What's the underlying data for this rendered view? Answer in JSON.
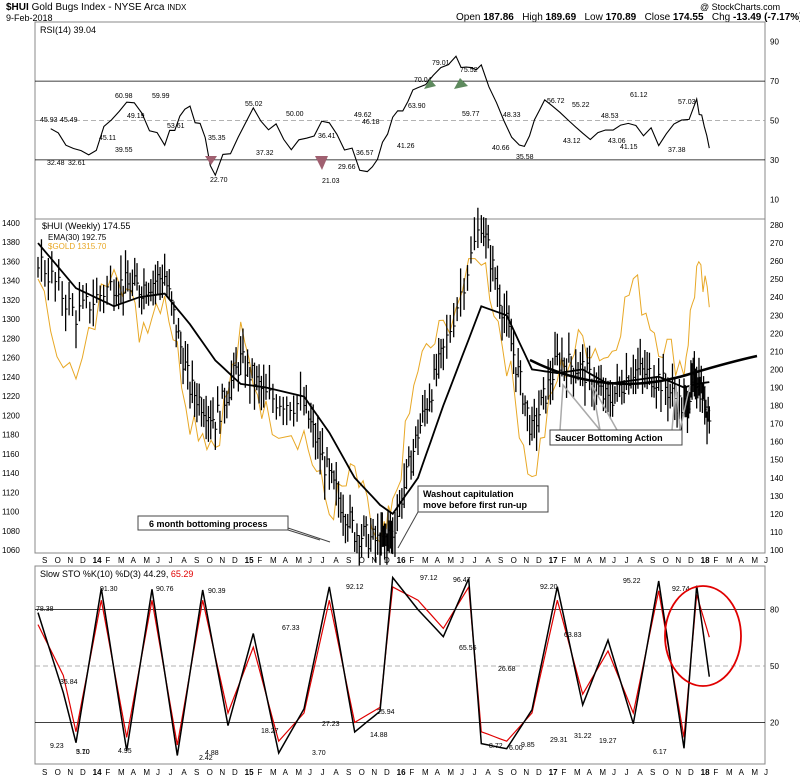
{
  "header": {
    "symbol": "$HUI",
    "name": "Gold Bugs Index - NYSE Arca",
    "exchange": "INDX",
    "date": "9-Feb-2018",
    "ohlc": {
      "open_label": "Open",
      "open": "187.86",
      "high_label": "High",
      "high": "189.69",
      "low_label": "Low",
      "low": "170.89",
      "close_label": "Close",
      "close": "174.55",
      "chg_label": "Chg",
      "chg": "-13.49 (-7.17%)"
    },
    "credit": "@ StockCharts.com"
  },
  "colors": {
    "hui": "#000000",
    "gold": "#e8a826",
    "rsi_over": "#5e8a5e",
    "rsi_under": "#a06070",
    "stoch_d": "#e00000",
    "circle": "#e00000",
    "grid": "#dddddd"
  },
  "rsi": {
    "legend": "RSI(14) 39.04",
    "ticks": [
      "90",
      "70",
      "50",
      "30",
      "10"
    ],
    "labels": [
      "45.93",
      "45.49",
      "32.48",
      "32.61",
      "60.98",
      "45.11",
      "49.19",
      "39.55",
      "59.99",
      "53.61",
      "35.35",
      "22.70",
      "55.02",
      "37.32",
      "50.00",
      "36.41",
      "21.03",
      "29.66",
      "49.62",
      "46.18",
      "36.57",
      "70.04",
      "79.01",
      "63.90",
      "41.26",
      "75.52",
      "59.77",
      "48.33",
      "40.66",
      "35.58",
      "56.72",
      "43.12",
      "55.22",
      "43.06",
      "48.53",
      "41.15",
      "61.12",
      "57.03",
      "37.38"
    ]
  },
  "main": {
    "legend_hui": "$HUI (Weekly) 174.55",
    "legend_ema": "EMA(30) 192.75",
    "legend_gold": "$GOLD 1315.70",
    "left_ticks": [
      "1400",
      "1380",
      "1360",
      "1340",
      "1320",
      "1300",
      "1280",
      "1260",
      "1240",
      "1220",
      "1200",
      "1180",
      "1160",
      "1140",
      "1120",
      "1100",
      "1080",
      "1060"
    ],
    "right_ticks": [
      "280",
      "270",
      "260",
      "250",
      "240",
      "230",
      "220",
      "210",
      "200",
      "190",
      "180",
      "170",
      "160",
      "150",
      "140",
      "130",
      "120",
      "110",
      "100"
    ],
    "annotations": {
      "bottoming": "6 month bottoming process",
      "washout_l1": "Washout capitulation",
      "washout_l2": "move before first run-up",
      "saucer": "Saucer Bottoming Action"
    }
  },
  "stoch": {
    "legend_prefix": "Slow STO %K(10) %D(3) 44.29,",
    "legend_d": "65.29",
    "ticks": [
      "80",
      "50",
      "20"
    ],
    "labels": [
      "78.38",
      "35.84",
      "9.23",
      "5.10",
      "3.70",
      "91.30",
      "90.76",
      "4.95",
      "2.42",
      "4.88",
      "90.39",
      "67.33",
      "18.27",
      "3.70",
      "27.23",
      "92.12",
      "14.88",
      "25.94",
      "97.12",
      "96.47",
      "65.55",
      "8.72",
      "6.00",
      "9.85",
      "26.68",
      "92.20",
      "63.83",
      "29.31",
      "31.22",
      "19.27",
      "95.22",
      "6.17",
      "92.74"
    ]
  },
  "xaxis": {
    "labels": [
      "S",
      "O",
      "N",
      "D",
      "14",
      "F",
      "M",
      "A",
      "M",
      "J",
      "J",
      "A",
      "S",
      "O",
      "N",
      "D",
      "15",
      "F",
      "M",
      "A",
      "M",
      "J",
      "J",
      "A",
      "S",
      "O",
      "N",
      "D",
      "16",
      "F",
      "M",
      "A",
      "M",
      "J",
      "J",
      "A",
      "S",
      "O",
      "N",
      "D",
      "17",
      "F",
      "M",
      "A",
      "M",
      "J",
      "J",
      "A",
      "S",
      "O",
      "N",
      "D",
      "18",
      "F",
      "M",
      "A",
      "M",
      "J"
    ]
  },
  "chart_data": [
    {
      "type": "line",
      "title": "RSI(14) 39.04",
      "ylim": [
        0,
        100
      ],
      "reference_lines": [
        70,
        50,
        30
      ],
      "x": [
        "2013-10",
        "2014-01",
        "2014-04",
        "2014-07",
        "2014-09",
        "2014-11",
        "2015-02",
        "2015-05",
        "2015-08",
        "2015-11",
        "2016-01",
        "2016-03",
        "2016-06",
        "2016-08",
        "2016-11",
        "2017-01",
        "2017-04",
        "2017-07",
        "2017-10",
        "2018-01",
        "2018-02"
      ],
      "series": [
        {
          "name": "RSI(14)",
          "values": [
            45.9,
            32.5,
            61.0,
            39.6,
            59.9,
            22.7,
            55.0,
            37.3,
            50.0,
            21.0,
            49.6,
            70.0,
            79.0,
            75.5,
            35.6,
            56.7,
            43.1,
            48.5,
            41.2,
            57.0,
            39.0
          ]
        }
      ]
    },
    {
      "type": "line",
      "title": "$HUI (Weekly) 174.55",
      "ylim_right": [
        100,
        280
      ],
      "ylim_left": [
        1060,
        1400
      ],
      "x": [
        "2013-09",
        "2013-12",
        "2014-03",
        "2014-05",
        "2014-07",
        "2014-09",
        "2014-11",
        "2015-01",
        "2015-03",
        "2015-06",
        "2015-08",
        "2015-10",
        "2015-12",
        "2016-01",
        "2016-03",
        "2016-05",
        "2016-08",
        "2016-10",
        "2016-12",
        "2017-02",
        "2017-04",
        "2017-06",
        "2017-08",
        "2017-10",
        "2017-12",
        "2018-01",
        "2018-02"
      ],
      "series": [
        {
          "name": "$HUI",
          "values": [
            262,
            230,
            248,
            245,
            252,
            190,
            172,
            205,
            185,
            180,
            140,
            110,
            104,
            110,
            165,
            210,
            282,
            225,
            165,
            205,
            200,
            182,
            200,
            195,
            178,
            196,
            175
          ]
        },
        {
          "name": "EMA(30)",
          "values": [
            270,
            245,
            235,
            240,
            242,
            225,
            205,
            192,
            190,
            185,
            165,
            140,
            125,
            120,
            140,
            180,
            235,
            230,
            200,
            198,
            200,
            192,
            194,
            196,
            190,
            192,
            193
          ]
        },
        {
          "name": "$GOLD",
          "values": [
            1330,
            1230,
            1370,
            1290,
            1330,
            1200,
            1170,
            1280,
            1200,
            1180,
            1100,
            1140,
            1060,
            1100,
            1250,
            1290,
            1370,
            1260,
            1130,
            1240,
            1280,
            1260,
            1340,
            1280,
            1250,
            1350,
            1316
          ]
        }
      ]
    },
    {
      "type": "line",
      "title": "Slow STO %K(10) %D(3) 44.29, 65.29",
      "ylim": [
        0,
        100
      ],
      "reference_lines": [
        80,
        50,
        20
      ],
      "x": [
        "2013-09",
        "2013-11",
        "2013-12",
        "2014-02",
        "2014-04",
        "2014-06",
        "2014-08",
        "2014-10",
        "2014-12",
        "2015-02",
        "2015-04",
        "2015-06",
        "2015-08",
        "2015-10",
        "2015-12",
        "2016-01",
        "2016-03",
        "2016-05",
        "2016-07",
        "2016-08",
        "2016-10",
        "2016-12",
        "2017-02",
        "2017-04",
        "2017-06",
        "2017-08",
        "2017-10",
        "2017-12",
        "2018-01",
        "2018-02"
      ],
      "series": [
        {
          "name": "%K",
          "values": [
            78.4,
            35.8,
            9.2,
            91.3,
            4.9,
            90.8,
            2.4,
            90.4,
            18.3,
            67.3,
            3.7,
            27.2,
            92.1,
            14.9,
            25.9,
            97.1,
            80,
            65.6,
            96.5,
            8.7,
            6.0,
            26.7,
            92.2,
            29.3,
            63.8,
            19.3,
            95.2,
            6.2,
            92.7,
            44.3
          ]
        },
        {
          "name": "%D",
          "values": [
            72,
            45,
            15,
            85,
            12,
            85,
            8,
            85,
            25,
            60,
            10,
            25,
            85,
            20,
            28,
            92,
            85,
            70,
            92,
            15,
            10,
            25,
            85,
            35,
            58,
            25,
            90,
            12,
            88,
            65.3
          ]
        }
      ]
    }
  ]
}
